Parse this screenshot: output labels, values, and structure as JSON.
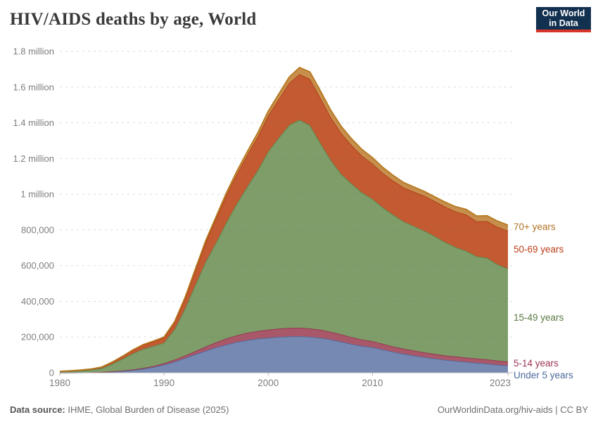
{
  "header": {
    "title": "HIV/AIDS deaths by age, World",
    "logo": {
      "line1": "Our World",
      "line2": "in Data",
      "bg": "#12304f",
      "accent": "#d8352a"
    }
  },
  "footer": {
    "source_label": "Data source:",
    "source_value": " IHME, Global Burden of Disease (2025)",
    "right_text": "OurWorldinData.org/hiv-aids | CC BY"
  },
  "chart_data": {
    "type": "area",
    "stacked": true,
    "title": "HIV/AIDS deaths by age, World",
    "xlabel": "",
    "ylabel": "",
    "x_range": [
      1980,
      2023
    ],
    "y_range": [
      0,
      1800000
    ],
    "grid": "dashed-horizontal",
    "legend_position": "right-edge-labels",
    "x": [
      1980,
      1981,
      1982,
      1983,
      1984,
      1985,
      1986,
      1987,
      1988,
      1989,
      1990,
      1991,
      1992,
      1993,
      1994,
      1995,
      1996,
      1997,
      1998,
      1999,
      2000,
      2001,
      2002,
      2003,
      2004,
      2005,
      2006,
      2007,
      2008,
      2009,
      2010,
      2011,
      2012,
      2013,
      2014,
      2015,
      2016,
      2017,
      2018,
      2019,
      2020,
      2021,
      2022,
      2023
    ],
    "xticks": [
      {
        "v": 1980,
        "label": "1980"
      },
      {
        "v": 1990,
        "label": "1990"
      },
      {
        "v": 2000,
        "label": "2000"
      },
      {
        "v": 2010,
        "label": "2010"
      },
      {
        "v": 2023,
        "label": "2023"
      }
    ],
    "yticks": [
      {
        "v": 0,
        "label": "0"
      },
      {
        "v": 200000,
        "label": "200,000"
      },
      {
        "v": 400000,
        "label": "400,000"
      },
      {
        "v": 600000,
        "label": "600,000"
      },
      {
        "v": 800000,
        "label": "800,000"
      },
      {
        "v": 1000000,
        "label": "1 million"
      },
      {
        "v": 1200000,
        "label": "1.2 million"
      },
      {
        "v": 1400000,
        "label": "1.4 million"
      },
      {
        "v": 1600000,
        "label": "1.6 million"
      },
      {
        "v": 1800000,
        "label": "1.8 million"
      }
    ],
    "series": [
      {
        "name": "Under 5 years",
        "fill": "#7589B3",
        "stroke": "#53689A",
        "label_color": "#4C6A9C",
        "label_y": 538,
        "values": [
          500,
          800,
          1200,
          2000,
          3500,
          6000,
          10000,
          15000,
          22000,
          32000,
          45000,
          62000,
          82000,
          103000,
          123000,
          142000,
          158000,
          172000,
          183000,
          191000,
          196000,
          201000,
          204000,
          205000,
          202000,
          196000,
          186000,
          174000,
          161000,
          150000,
          143000,
          130000,
          117000,
          106000,
          96000,
          87000,
          79000,
          72000,
          66000,
          61000,
          56000,
          51000,
          45000,
          40000
        ]
      },
      {
        "name": "5-14 years",
        "fill": "#A9586A",
        "stroke": "#93344E",
        "label_color": "#9A3450",
        "label_y": 521,
        "values": [
          200,
          300,
          400,
          600,
          1000,
          1500,
          2200,
          3200,
          4500,
          6000,
          8000,
          11000,
          14000,
          18000,
          23000,
          29000,
          34000,
          38000,
          41000,
          43000,
          45000,
          46000,
          47000,
          47000,
          46000,
          45000,
          43000,
          41000,
          38000,
          36000,
          34000,
          32000,
          30000,
          29000,
          28000,
          27000,
          26000,
          25000,
          25000,
          24000,
          24000,
          24000,
          23000,
          23000
        ]
      },
      {
        "name": "15-49 years",
        "fill": "#7E9D69",
        "stroke": "#61854B",
        "label_color": "#5B7A43",
        "label_y": 456,
        "values": [
          5100,
          7000,
          9600,
          13500,
          20800,
          41500,
          65400,
          89900,
          107100,
          112100,
          115500,
          169500,
          263000,
          371500,
          477000,
          559000,
          653000,
          739000,
          820000,
          901000,
          999000,
          1069000,
          1136000,
          1165000,
          1139000,
          1047000,
          962000,
          899000,
          860000,
          824000,
          797000,
          764000,
          738000,
          712000,
          697000,
          681000,
          659000,
          634000,
          612000,
          598000,
          572000,
          569000,
          539000,
          520000
        ]
      },
      {
        "name": "50-69 years",
        "fill": "#C35A31",
        "stroke": "#AE3D13",
        "label_color": "#BC3C17",
        "label_y": 359,
        "values": [
          2000,
          2600,
          3400,
          4400,
          6000,
          9000,
          13000,
          18000,
          22000,
          25000,
          28000,
          38000,
          55000,
          80000,
          108000,
          135000,
          152000,
          165000,
          177000,
          188000,
          200000,
          215000,
          235000,
          255000,
          258000,
          252000,
          240000,
          228000,
          215000,
          205000,
          197000,
          192000,
          190000,
          190000,
          192000,
          195000,
          196000,
          198000,
          200000,
          203000,
          196000,
          205000,
          210000,
          212000
        ]
      },
      {
        "name": "70+ years",
        "fill": "#C78F4D",
        "stroke": "#B5791F",
        "label_color": "#B06F22",
        "label_y": 327,
        "values": [
          200,
          300,
          400,
          500,
          700,
          1000,
          1400,
          1900,
          2400,
          2900,
          3500,
          4500,
          6000,
          7500,
          9000,
          10000,
          13000,
          16000,
          19000,
          22000,
          25000,
          29000,
          33000,
          38000,
          40000,
          40000,
          39000,
          38000,
          36000,
          35000,
          34000,
          32000,
          30000,
          28000,
          27000,
          25000,
          25000,
          26000,
          27000,
          29000,
          30000,
          31000,
          32000,
          32000
        ]
      }
    ]
  }
}
